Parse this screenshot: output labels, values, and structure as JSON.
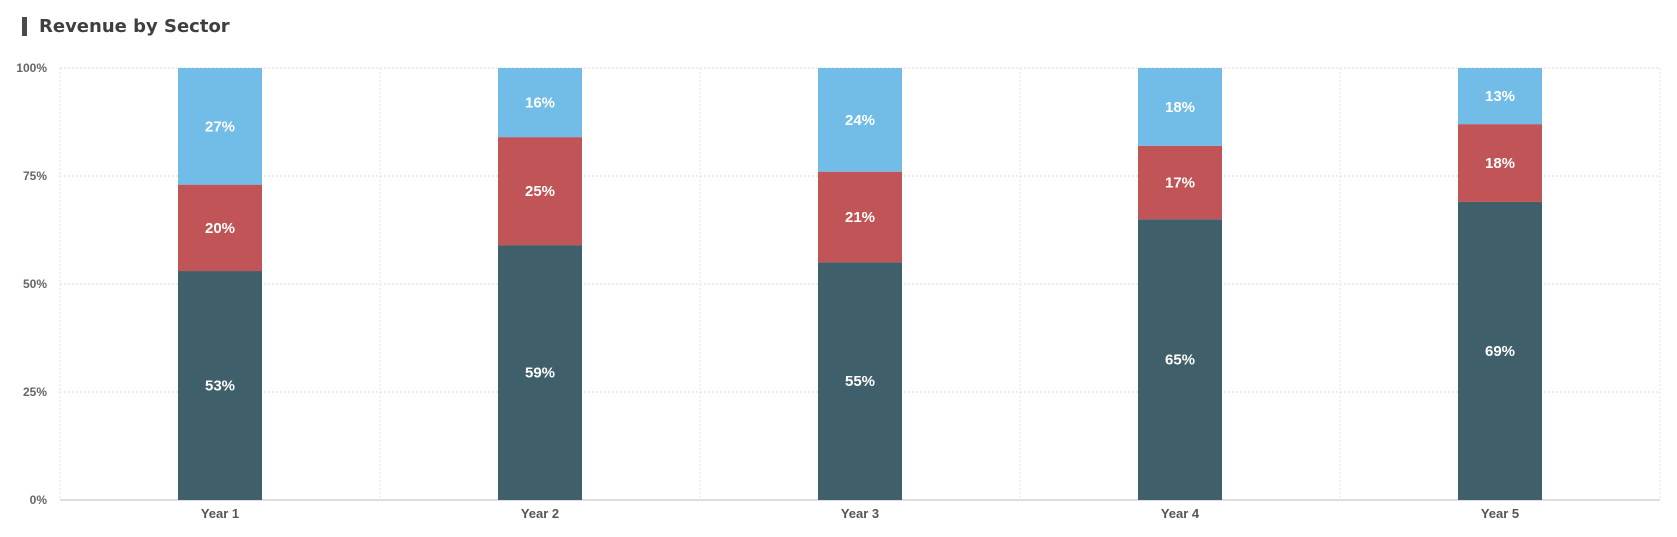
{
  "chart_data": {
    "type": "bar",
    "stacked": true,
    "title": "Revenue by Sector",
    "categories": [
      "Year 1",
      "Year 2",
      "Year 3",
      "Year 4",
      "Year 5"
    ],
    "series": [
      {
        "values": [
          53,
          59,
          55,
          65,
          69
        ],
        "color": "#3f5f6b"
      },
      {
        "values": [
          20,
          25,
          21,
          17,
          18
        ],
        "color": "#c05456"
      },
      {
        "values": [
          27,
          16,
          24,
          18,
          13
        ],
        "color": "#72bde8"
      }
    ],
    "y_ticks": [
      "0%",
      "25%",
      "50%",
      "75%",
      "100%"
    ],
    "ylim": [
      0,
      100
    ],
    "grid": true,
    "legend": "none"
  }
}
